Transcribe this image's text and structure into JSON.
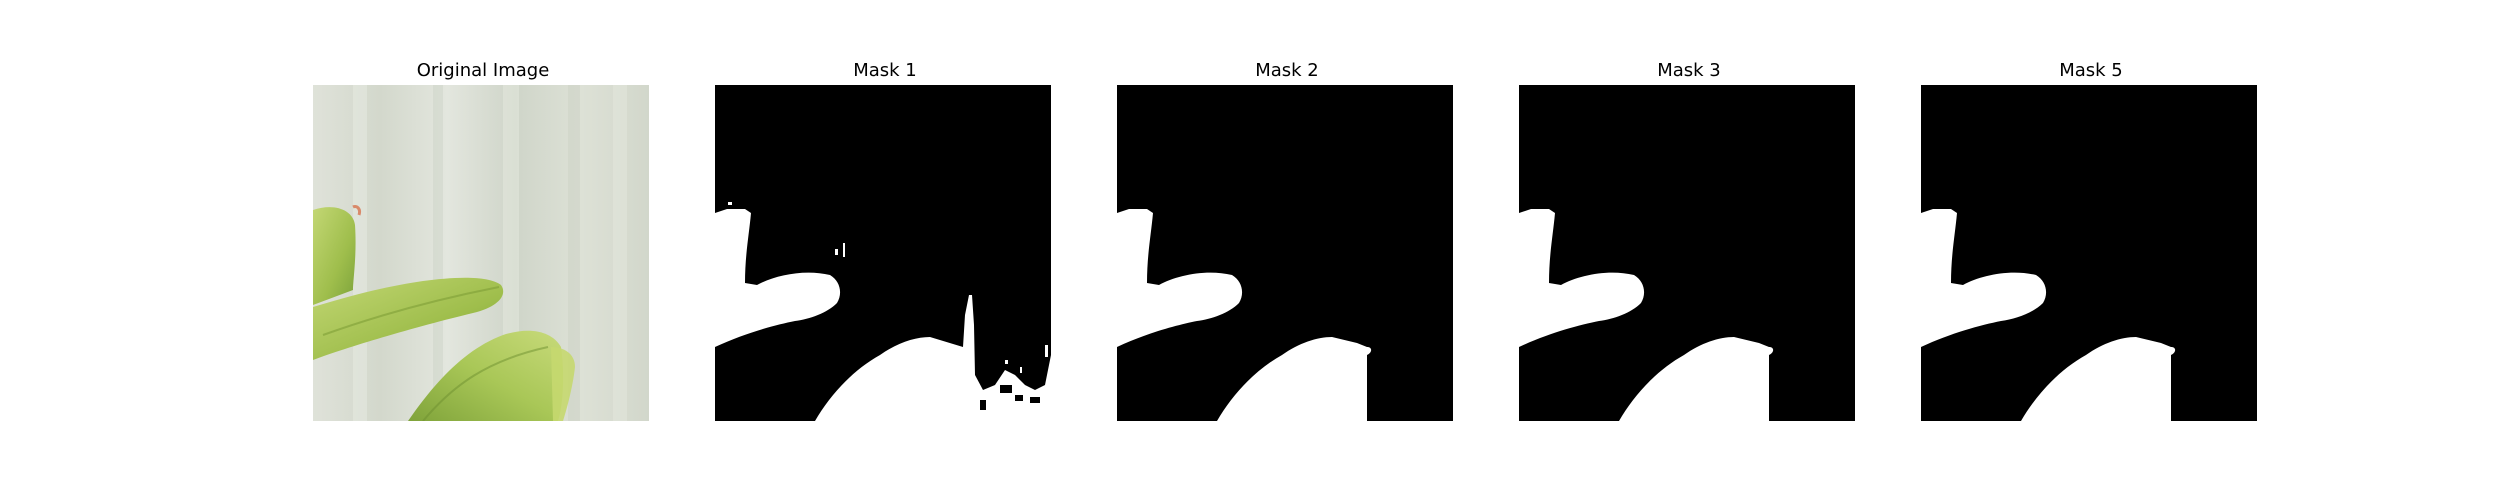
{
  "figure": {
    "panels": [
      {
        "title": "Original Image",
        "kind": "photo"
      },
      {
        "title": "Mask 1",
        "kind": "mask"
      },
      {
        "title": "Mask 2",
        "kind": "mask"
      },
      {
        "title": "Mask 3",
        "kind": "mask"
      },
      {
        "title": "Mask 5",
        "kind": "mask"
      }
    ]
  },
  "colors": {
    "background": "#ffffff",
    "mask_background": "#000000",
    "mask_foreground": "#ffffff",
    "photo_wall": "#d9ddd3",
    "leaf_light": "#b8cf62",
    "leaf_mid": "#97b847",
    "leaf_dark": "#6f9431"
  }
}
